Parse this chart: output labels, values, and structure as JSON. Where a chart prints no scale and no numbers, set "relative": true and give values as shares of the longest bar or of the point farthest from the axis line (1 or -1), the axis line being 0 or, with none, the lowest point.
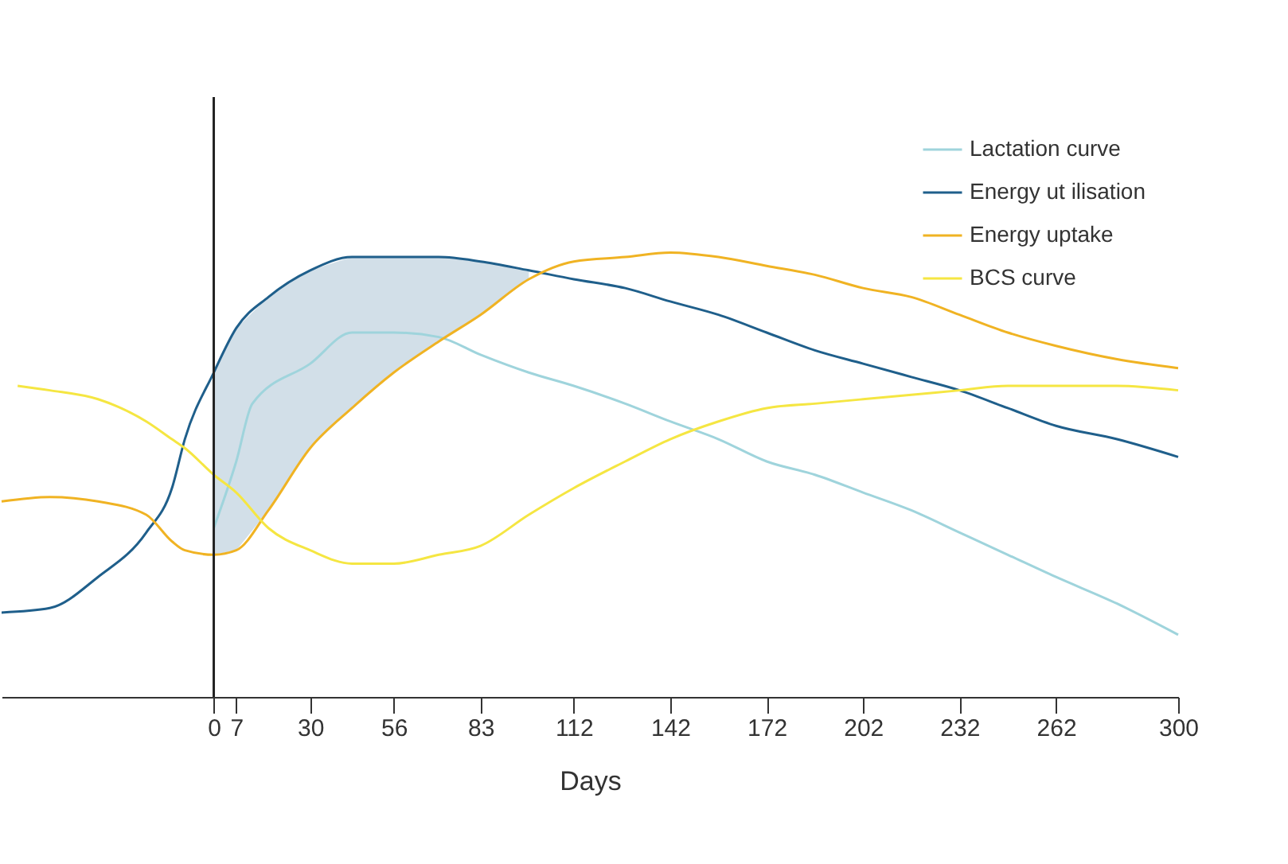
{
  "chart_data": {
    "type": "line",
    "xlabel": "Days",
    "relative": true,
    "legend": "top right",
    "grid": false,
    "x": [
      -66,
      -51,
      -36,
      -21,
      -13,
      -9,
      0,
      7,
      17,
      30,
      43,
      56,
      70,
      83,
      98,
      112,
      128,
      142,
      157,
      172,
      187,
      202,
      217,
      232,
      247,
      262,
      281,
      300
    ],
    "xlim": [
      -66,
      300
    ],
    "xticks": [
      0,
      7,
      30,
      56,
      83,
      112,
      142,
      172,
      202,
      232,
      262,
      300
    ],
    "ref_lines": [
      {
        "axis": "x",
        "value": 0,
        "color": "#222222"
      }
    ],
    "series": [
      {
        "name": "Lactation curve",
        "color": "#9fd4dc",
        "x": [
          0,
          7,
          12,
          30,
          43,
          56,
          70,
          83,
          98,
          112,
          128,
          142,
          157,
          172,
          187,
          202,
          217,
          232,
          247,
          262,
          281,
          300
        ],
        "values": [
          0.38,
          0.53,
          0.66,
          0.75,
          0.82,
          0.82,
          0.81,
          0.77,
          0.73,
          0.7,
          0.66,
          0.62,
          0.58,
          0.53,
          0.5,
          0.46,
          0.42,
          0.37,
          0.32,
          0.27,
          0.21,
          0.14
        ]
      },
      {
        "name": "Energy ut ilisation",
        "color": "#1f5f8b",
        "values": [
          0.19,
          0.2,
          0.27,
          0.37,
          0.47,
          0.58,
          0.73,
          0.83,
          0.9,
          0.96,
          0.99,
          0.99,
          0.99,
          0.98,
          0.96,
          0.94,
          0.92,
          0.89,
          0.86,
          0.82,
          0.78,
          0.75,
          0.72,
          0.69,
          0.65,
          0.61,
          0.58,
          0.54
        ],
        "lower": [
          null,
          null,
          null,
          null,
          null,
          null,
          0.32,
          0.33,
          0.42,
          0.56,
          0.65,
          0.73,
          0.8,
          0.86,
          0.94,
          null,
          null,
          null,
          null,
          null,
          null,
          null,
          null,
          null,
          null,
          null,
          null,
          null
        ],
        "upper": [
          null,
          null,
          null,
          null,
          null,
          null,
          0.73,
          0.83,
          0.9,
          0.96,
          0.99,
          0.99,
          0.99,
          0.98,
          0.96,
          null,
          null,
          null,
          null,
          null,
          null,
          null,
          null,
          null,
          null,
          null,
          null,
          null
        ]
      },
      {
        "name": "Energy uptake",
        "color": "#f0b323",
        "values": [
          0.44,
          0.45,
          0.44,
          0.41,
          0.35,
          0.33,
          0.32,
          0.33,
          0.42,
          0.56,
          0.65,
          0.73,
          0.8,
          0.86,
          0.94,
          0.98,
          0.99,
          1.0,
          0.99,
          0.97,
          0.95,
          0.92,
          0.9,
          0.86,
          0.82,
          0.79,
          0.76,
          0.74
        ]
      },
      {
        "name": "BCS curve",
        "color": "#f5e642",
        "x": [
          -61,
          -51,
          -36,
          -21,
          -13,
          -9,
          0,
          7,
          17,
          30,
          43,
          56,
          70,
          83,
          98,
          112,
          128,
          142,
          157,
          172,
          187,
          202,
          217,
          232,
          247,
          262,
          281,
          300
        ],
        "values": [
          0.7,
          0.69,
          0.67,
          0.62,
          0.58,
          0.56,
          0.5,
          0.46,
          0.38,
          0.33,
          0.3,
          0.3,
          0.32,
          0.34,
          0.41,
          0.47,
          0.53,
          0.58,
          0.62,
          0.65,
          0.66,
          0.67,
          0.68,
          0.69,
          0.7,
          0.7,
          0.7,
          0.69
        ]
      }
    ]
  }
}
